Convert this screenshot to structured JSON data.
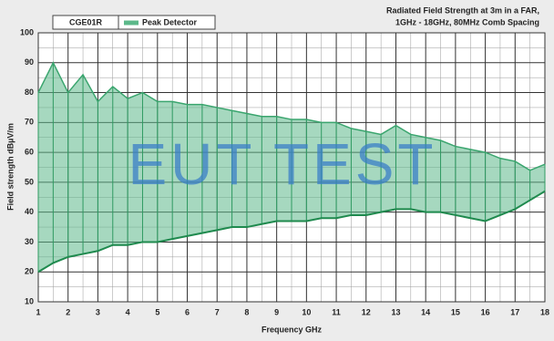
{
  "chart_data": {
    "type": "band",
    "title": "Radiated Field Strength at 3m in a FAR,",
    "subtitle": "1GHz - 18GHz, 80MHz Comb Spacing",
    "legend_title": "CGE01R",
    "watermark": "EUT TEST",
    "x_label": "Frequency GHz",
    "y_label": "Field strength dBµV/m",
    "x": [
      1,
      1.5,
      2,
      2.5,
      3,
      3.5,
      4,
      4.5,
      5,
      5.5,
      6,
      6.5,
      7,
      7.5,
      8,
      8.5,
      9,
      9.5,
      10,
      10.5,
      11,
      11.5,
      12,
      12.5,
      13,
      13.5,
      14,
      14.5,
      15,
      15.5,
      16,
      16.5,
      17,
      17.5,
      18
    ],
    "series": [
      {
        "name": "Peak Detector",
        "color": "#5cb88a",
        "values": [
          80,
          90,
          80,
          86,
          77,
          82,
          78,
          80,
          77,
          77,
          76,
          76,
          75,
          74,
          73,
          72,
          72,
          71,
          71,
          70,
          70,
          68,
          67,
          66,
          69,
          66,
          65,
          64,
          62,
          61,
          60,
          58,
          57,
          54,
          56
        ],
        "low_values": [
          20,
          23,
          25,
          26,
          27,
          29,
          29,
          30,
          30,
          31,
          32,
          33,
          34,
          35,
          35,
          36,
          37,
          37,
          37,
          38,
          38,
          39,
          39,
          40,
          41,
          41,
          40,
          40,
          39,
          38,
          37,
          39,
          41,
          44,
          47
        ]
      }
    ],
    "xlim": [
      1,
      18
    ],
    "xticks": [
      1,
      2,
      3,
      4,
      5,
      6,
      7,
      8,
      9,
      10,
      11,
      12,
      13,
      14,
      15,
      16,
      17,
      18
    ],
    "ylim": [
      10,
      100
    ],
    "yticks": [
      10,
      20,
      30,
      40,
      50,
      60,
      70,
      80,
      90,
      100
    ],
    "grid": true,
    "minor_grid": true
  }
}
